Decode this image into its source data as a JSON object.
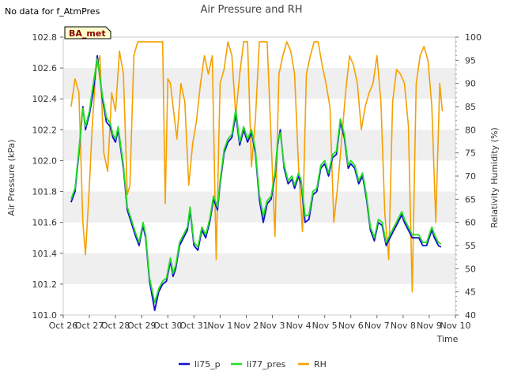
{
  "header": {
    "nodata": "No data for f_AtmPres",
    "badge": "BA_met"
  },
  "chart_data": {
    "type": "line",
    "title": "Air Pressure and RH",
    "xlabel": "Time",
    "ylabel": "Air Pressure (kPa)",
    "y2label": "Relativity Humidity (%)",
    "ylim": [
      101.0,
      102.8
    ],
    "y2lim": [
      40,
      100
    ],
    "xlim": [
      0,
      15
    ],
    "yticks": [
      "101.0",
      "101.2",
      "101.4",
      "101.6",
      "101.8",
      "102.0",
      "102.2",
      "102.4",
      "102.6",
      "102.8"
    ],
    "y2ticks": [
      "40",
      "45",
      "50",
      "55",
      "60",
      "65",
      "70",
      "75",
      "80",
      "85",
      "90",
      "95",
      "100"
    ],
    "xticks": [
      "Oct 26",
      "Oct 27",
      "Oct 28",
      "Oct 29",
      "Oct 30",
      "Oct 31",
      "Nov 1",
      "Nov 2",
      "Nov 3",
      "Nov 4",
      "Nov 5",
      "Nov 6",
      "Nov 7",
      "Nov 8",
      "Nov 9",
      "Nov 10"
    ],
    "grid": "horizontal bands",
    "legend": "bottom-center",
    "series": [
      {
        "name": "li75_p",
        "color": "#1010cc",
        "axis": "left",
        "x": [
          0.3,
          0.45,
          0.6,
          0.75,
          0.85,
          1.0,
          1.15,
          1.3,
          1.5,
          1.65,
          1.8,
          1.9,
          2.0,
          2.1,
          2.3,
          2.45,
          2.6,
          2.75,
          2.9,
          3.05,
          3.15,
          3.3,
          3.5,
          3.65,
          3.8,
          3.95,
          4.1,
          4.2,
          4.3,
          4.45,
          4.6,
          4.75,
          4.85,
          5.0,
          5.15,
          5.3,
          5.45,
          5.6,
          5.75,
          5.9,
          6.0,
          6.15,
          6.3,
          6.45,
          6.6,
          6.75,
          6.9,
          7.05,
          7.2,
          7.35,
          7.5,
          7.65,
          7.8,
          7.95,
          8.1,
          8.2,
          8.3,
          8.45,
          8.6,
          8.75,
          8.85,
          9.0,
          9.1,
          9.25,
          9.4,
          9.55,
          9.7,
          9.85,
          10.0,
          10.15,
          10.3,
          10.45,
          10.6,
          10.75,
          10.9,
          11.0,
          11.15,
          11.3,
          11.45,
          11.6,
          11.75,
          11.9,
          12.05,
          12.2,
          12.35,
          12.5,
          12.65,
          12.8,
          12.95,
          13.05,
          13.2,
          13.35,
          13.5,
          13.6,
          13.75,
          13.9,
          14.0,
          14.1,
          14.2,
          14.35,
          14.45
        ],
        "y": [
          101.73,
          101.8,
          102.05,
          102.35,
          102.2,
          102.3,
          102.45,
          102.68,
          102.4,
          102.25,
          102.22,
          102.15,
          102.12,
          102.2,
          101.95,
          101.68,
          101.6,
          101.52,
          101.45,
          101.58,
          101.5,
          101.22,
          101.03,
          101.15,
          101.2,
          101.22,
          101.35,
          101.25,
          101.3,
          101.45,
          101.5,
          101.55,
          101.68,
          101.45,
          101.42,
          101.55,
          101.5,
          101.6,
          101.75,
          101.68,
          101.85,
          102.05,
          102.12,
          102.15,
          102.3,
          102.1,
          102.2,
          102.12,
          102.18,
          102.05,
          101.75,
          101.6,
          101.72,
          101.75,
          101.9,
          102.1,
          102.2,
          101.95,
          101.85,
          101.88,
          101.82,
          101.9,
          101.85,
          101.6,
          101.62,
          101.78,
          101.8,
          101.95,
          101.98,
          101.9,
          102.02,
          102.04,
          102.25,
          102.15,
          101.95,
          101.98,
          101.95,
          101.85,
          101.9,
          101.75,
          101.55,
          101.48,
          101.6,
          101.58,
          101.45,
          101.5,
          101.55,
          101.6,
          101.65,
          101.6,
          101.55,
          101.5,
          101.5,
          101.5,
          101.45,
          101.45,
          101.5,
          101.55,
          101.5,
          101.45,
          101.44
        ]
      },
      {
        "name": "li77_pres",
        "color": "#22dd22",
        "axis": "left",
        "x": [
          0.3,
          0.45,
          0.6,
          0.75,
          0.85,
          1.0,
          1.15,
          1.3,
          1.5,
          1.65,
          1.8,
          1.9,
          2.0,
          2.1,
          2.3,
          2.45,
          2.6,
          2.75,
          2.9,
          3.05,
          3.15,
          3.3,
          3.5,
          3.65,
          3.8,
          3.95,
          4.1,
          4.2,
          4.3,
          4.45,
          4.6,
          4.75,
          4.85,
          5.0,
          5.15,
          5.3,
          5.45,
          5.6,
          5.75,
          5.9,
          6.0,
          6.15,
          6.3,
          6.45,
          6.6,
          6.75,
          6.9,
          7.05,
          7.2,
          7.35,
          7.5,
          7.65,
          7.8,
          7.95,
          8.1,
          8.2,
          8.3,
          8.45,
          8.6,
          8.75,
          8.85,
          9.0,
          9.1,
          9.25,
          9.4,
          9.55,
          9.7,
          9.85,
          10.0,
          10.15,
          10.3,
          10.45,
          10.6,
          10.75,
          10.9,
          11.0,
          11.15,
          11.3,
          11.45,
          11.6,
          11.75,
          11.9,
          12.05,
          12.2,
          12.35,
          12.5,
          12.65,
          12.8,
          12.95,
          13.05,
          13.2,
          13.35,
          13.5,
          13.6,
          13.75,
          13.9,
          14.0,
          14.1,
          14.2,
          14.35,
          14.45
        ],
        "y": [
          101.75,
          101.82,
          102.07,
          102.34,
          102.22,
          102.32,
          102.5,
          102.66,
          102.42,
          102.28,
          102.24,
          102.17,
          102.14,
          102.22,
          101.97,
          101.7,
          101.62,
          101.54,
          101.47,
          101.6,
          101.52,
          101.24,
          101.08,
          101.17,
          101.22,
          101.24,
          101.37,
          101.27,
          101.32,
          101.47,
          101.52,
          101.57,
          101.7,
          101.47,
          101.44,
          101.57,
          101.52,
          101.62,
          101.77,
          101.7,
          101.87,
          102.07,
          102.14,
          102.17,
          102.33,
          102.12,
          102.22,
          102.14,
          102.2,
          102.07,
          101.78,
          101.64,
          101.74,
          101.77,
          101.92,
          102.12,
          102.18,
          101.97,
          101.87,
          101.9,
          101.84,
          101.92,
          101.87,
          101.64,
          101.65,
          101.8,
          101.82,
          101.97,
          102.0,
          101.92,
          102.04,
          102.06,
          102.27,
          102.17,
          101.97,
          102.0,
          101.97,
          101.87,
          101.92,
          101.77,
          101.57,
          101.5,
          101.62,
          101.6,
          101.47,
          101.52,
          101.57,
          101.62,
          101.67,
          101.62,
          101.57,
          101.52,
          101.52,
          101.52,
          101.47,
          101.47,
          101.52,
          101.57,
          101.52,
          101.47,
          101.46
        ]
      },
      {
        "name": "RH",
        "color": "#f5a000",
        "axis": "right",
        "x": [
          0.3,
          0.45,
          0.6,
          0.75,
          0.85,
          1.0,
          1.1,
          1.25,
          1.4,
          1.55,
          1.7,
          1.85,
          2.0,
          2.15,
          2.3,
          2.45,
          2.55,
          2.7,
          2.85,
          3.0,
          3.2,
          3.4,
          3.6,
          3.8,
          3.9,
          4.0,
          4.1,
          4.2,
          4.35,
          4.5,
          4.65,
          4.8,
          4.95,
          5.1,
          5.25,
          5.4,
          5.55,
          5.7,
          5.85,
          6.0,
          6.15,
          6.3,
          6.45,
          6.6,
          6.75,
          6.9,
          7.05,
          7.2,
          7.35,
          7.5,
          7.65,
          7.8,
          7.95,
          8.1,
          8.25,
          8.4,
          8.55,
          8.7,
          8.85,
          9.0,
          9.15,
          9.3,
          9.45,
          9.6,
          9.75,
          9.9,
          10.05,
          10.2,
          10.35,
          10.5,
          10.65,
          10.8,
          10.95,
          11.1,
          11.25,
          11.4,
          11.55,
          11.7,
          11.85,
          12.0,
          12.15,
          12.3,
          12.45,
          12.6,
          12.75,
          12.9,
          13.05,
          13.2,
          13.35,
          13.5,
          13.65,
          13.8,
          13.95,
          14.1,
          14.25,
          14.4,
          14.5
        ],
        "y": [
          85,
          91,
          88,
          60,
          53,
          68,
          80,
          93,
          96,
          75,
          71,
          88,
          84,
          97,
          92,
          66,
          68,
          96,
          99,
          99,
          99,
          99,
          99,
          99,
          64,
          91,
          90,
          85,
          78,
          90,
          86,
          68,
          77,
          82,
          90,
          96,
          92,
          96,
          52,
          90,
          93,
          99,
          96,
          83,
          92,
          99,
          99,
          72,
          82,
          99,
          99,
          99,
          78,
          57,
          92,
          96,
          99,
          97,
          92,
          72,
          58,
          92,
          96,
          99,
          99,
          94,
          90,
          85,
          60,
          68,
          78,
          88,
          96,
          94,
          90,
          80,
          85,
          88,
          90,
          96,
          86,
          62,
          52,
          86,
          93,
          92,
          90,
          81,
          45,
          90,
          96,
          98,
          95,
          85,
          60,
          90,
          84
        ]
      }
    ]
  }
}
